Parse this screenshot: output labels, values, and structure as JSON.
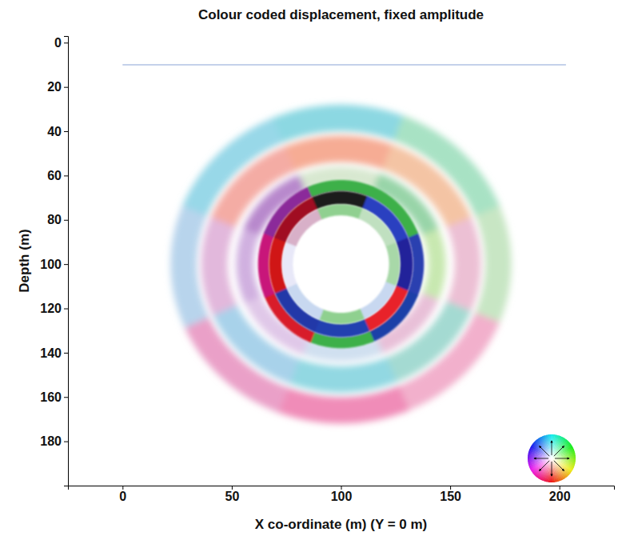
{
  "chart_data": {
    "type": "wavefield",
    "title": "Colour coded displacement, fixed amplitude",
    "x_label": "X co-ordinate (m)  (Y = 0 m)",
    "y_label": "Depth (m)",
    "xlim": [
      -25,
      225
    ],
    "ylim": [
      200,
      -3
    ],
    "xticks": [
      0,
      50,
      100,
      150,
      200
    ],
    "yticks": [
      0,
      20,
      40,
      60,
      80,
      100,
      120,
      140,
      160,
      180
    ],
    "legend": "lower right",
    "series": [
      {
        "type": "line",
        "color": "#8aa4d6",
        "x": [
          0,
          203
        ],
        "values": [
          10,
          10
        ]
      }
    ],
    "wavefronts": [
      {
        "center": [
          100,
          100
        ],
        "rx": [
          66,
          78
        ],
        "ry": [
          60,
          72
        ],
        "colors": [
          "#c8e6c4",
          "#f2b0cc",
          "#f08cb8",
          "#eaa0c8",
          "#b8d4ec",
          "#98d8e8",
          "#8cd8e2",
          "#a8e2c4"
        ]
      },
      {
        "center": [
          100,
          100
        ],
        "rx": [
          52,
          64
        ],
        "ry": [
          46,
          58
        ],
        "colors": [
          "#ecc0d4",
          "#a4dad2",
          "#92d8e2",
          "#a8d2ea",
          "#e2b8dc",
          "#f4aca4",
          "#f6ac94",
          "#f4c4a4"
        ]
      },
      {
        "center": [
          100,
          100
        ],
        "rx": [
          40,
          48
        ],
        "ry": [
          36,
          44
        ],
        "colors": [
          "#c8e8b0",
          "#e8c0d8",
          "#d0e0f0",
          "#e0c8e8",
          "#d0b0e0",
          "#b888cc",
          "#d8e8d0",
          "#98d4a8"
        ]
      },
      {
        "center": [
          100,
          100
        ],
        "rx": [
          33,
          38
        ],
        "ry": [
          33,
          38
        ],
        "colors": [
          "#2a3fb0",
          "#1f3fa8",
          "#3cb04a",
          "#d81a2a",
          "#c8187a",
          "#8b2a9a",
          "#3cb04a",
          "#3cb04a"
        ]
      },
      {
        "center": [
          100,
          100
        ],
        "rx": [
          27,
          33
        ],
        "ry": [
          27,
          33
        ],
        "colors": [
          "#20209a",
          "#e8202a",
          "#2040b0",
          "#2038a8",
          "#d01818",
          "#a01020",
          "#1a1a1a",
          "#2a40c0"
        ]
      },
      {
        "center": [
          100,
          100
        ],
        "rx": [
          22,
          27
        ],
        "ry": [
          22,
          27
        ],
        "colors": [
          "#a8d8a8",
          "#c8d8f0",
          "#8fd08f",
          "#c8d8f0",
          "#e8e8f8",
          "#d8b0c8",
          "#90d090",
          "#c0e0c0"
        ]
      }
    ]
  }
}
